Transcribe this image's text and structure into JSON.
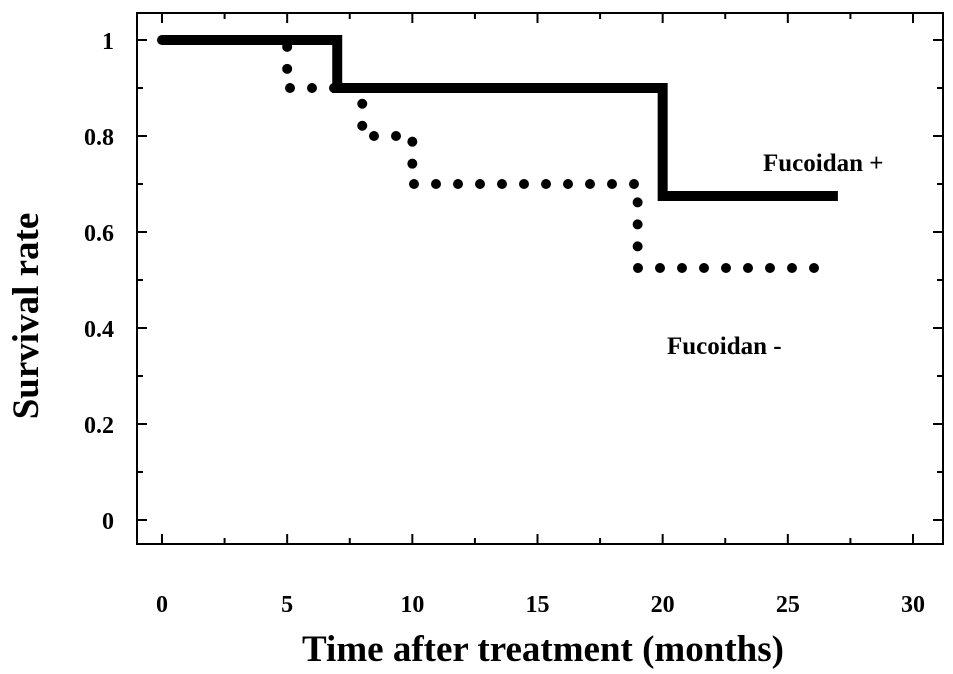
{
  "chart_data": {
    "type": "line",
    "title": "",
    "xlabel": "Time after treatment (months)",
    "ylabel": "Survival rate",
    "xlim": [
      0,
      30
    ],
    "ylim": [
      0,
      1
    ],
    "x_ticks": [
      "0",
      "5",
      "10",
      "15",
      "20",
      "25",
      "30"
    ],
    "y_ticks": [
      "0",
      "0.2",
      "0.4",
      "0.6",
      "0.8",
      "1"
    ],
    "grid": false,
    "series": [
      {
        "name": "Fucoidan +",
        "style": "solid",
        "color": "#000000",
        "x": [
          0,
          7,
          7,
          20,
          20,
          27
        ],
        "y": [
          1.0,
          1.0,
          0.9,
          0.9,
          0.675,
          0.675
        ]
      },
      {
        "name": "Fucoidan -",
        "style": "dotted",
        "color": "#000000",
        "x": [
          0,
          5,
          5,
          8,
          8,
          10,
          10,
          19,
          19,
          26.5
        ],
        "y": [
          1.0,
          1.0,
          0.9,
          0.9,
          0.8,
          0.8,
          0.7,
          0.7,
          0.525,
          0.525
        ]
      }
    ]
  }
}
